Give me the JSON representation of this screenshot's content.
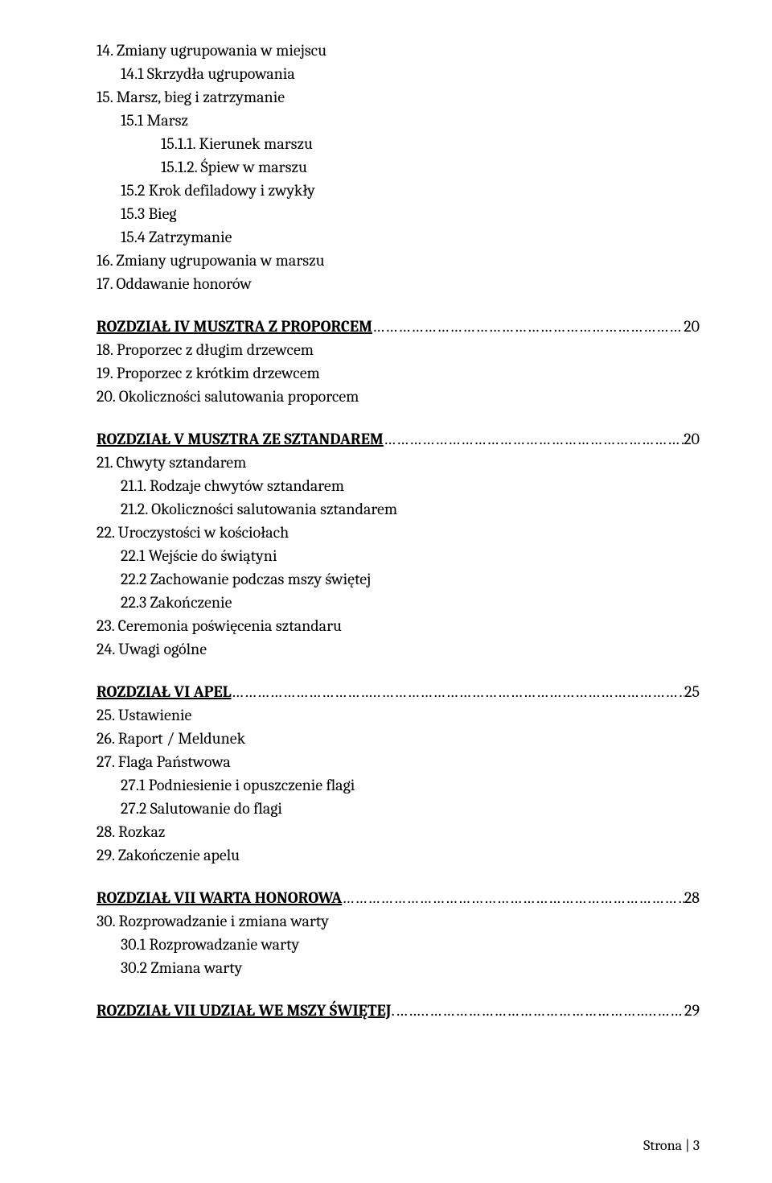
{
  "colors": {
    "background": "#ffffff",
    "text": "#000000"
  },
  "typography": {
    "fontFamily": "Cambria, Georgia, serif",
    "fontSizePt": 15,
    "lineHeight": 1.45
  },
  "toc": {
    "block1": [
      {
        "text": "14. Zmiany ugrupowania w miejscu",
        "indent": 0
      },
      {
        "text": "14.1 Skrzydła ugrupowania",
        "indent": 1
      },
      {
        "text": "15. Marsz, bieg i zatrzymanie",
        "indent": 0
      },
      {
        "text": "15.1 Marsz",
        "indent": 1
      },
      {
        "text": "15.1.1. Kierunek marszu",
        "indent": 2
      },
      {
        "text": "15.1.2. Śpiew w marszu",
        "indent": 2
      },
      {
        "text": "15.2 Krok defiladowy i zwykły",
        "indent": 1
      },
      {
        "text": "15.3 Bieg",
        "indent": 1
      },
      {
        "text": "15.4 Zatrzymanie",
        "indent": 1
      },
      {
        "text": "16. Zmiany ugrupowania w marszu",
        "indent": 0
      },
      {
        "text": "17. Oddawanie honorów",
        "indent": 0
      }
    ],
    "section4": {
      "title": "ROZDZIAŁ IV MUSZTRA Z PROPORCEM",
      "page": "20"
    },
    "block2": [
      {
        "text": "18. Proporzec z długim drzewcem",
        "indent": 0
      },
      {
        "text": "19. Proporzec z krótkim drzewcem",
        "indent": 0
      },
      {
        "text": "20. Okoliczności salutowania proporcem",
        "indent": 0
      }
    ],
    "section5": {
      "title": "ROZDZIAŁ V MUSZTRA ZE SZTANDAREM",
      "page": "20"
    },
    "block3": [
      {
        "text": "21. Chwyty sztandarem",
        "indent": 0
      },
      {
        "text": "21.1. Rodzaje chwytów sztandarem",
        "indent": 1
      },
      {
        "text": "21.2. Okoliczności salutowania sztandarem",
        "indent": 1
      },
      {
        "text": "22. Uroczystości w kościołach",
        "indent": 0
      },
      {
        "text": "22.1 Wejście do świątyni",
        "indent": 1
      },
      {
        "text": "22.2 Zachowanie podczas mszy świętej",
        "indent": 1
      },
      {
        "text": "22.3 Zakończenie",
        "indent": 1
      },
      {
        "text": "23. Ceremonia poświęcenia sztandaru",
        "indent": 0
      },
      {
        "text": "24. Uwagi ogólne",
        "indent": 0
      }
    ],
    "section6": {
      "title": "ROZDZIAŁ VI APEL",
      "page": "25"
    },
    "block4": [
      {
        "text": "25. Ustawienie",
        "indent": 0
      },
      {
        "text": "26. Raport / Meldunek",
        "indent": 0
      },
      {
        "text": "27. Flaga Państwowa",
        "indent": 0
      },
      {
        "text": "27.1 Podniesienie i opuszczenie flagi",
        "indent": 1
      },
      {
        "text": "27.2 Salutowanie do flagi",
        "indent": 1
      },
      {
        "text": "28. Rozkaz",
        "indent": 0
      },
      {
        "text": "29. Zakończenie apelu",
        "indent": 0
      }
    ],
    "section7a": {
      "title": "ROZDZIAŁ VII WARTA HONOROWA",
      "page": "28"
    },
    "block5": [
      {
        "text": "30. Rozprowadzanie i zmiana warty",
        "indent": 0
      },
      {
        "text": "30.1 Rozprowadzanie warty",
        "indent": 1
      },
      {
        "text": "30.2 Zmiana warty",
        "indent": 1
      }
    ],
    "section7b": {
      "title": "ROZDZIAŁ VII UDZIAŁ WE MSZY ŚWIĘTEJ",
      "page": "29"
    }
  },
  "footer": {
    "label": "Strona | ",
    "number": "3"
  }
}
